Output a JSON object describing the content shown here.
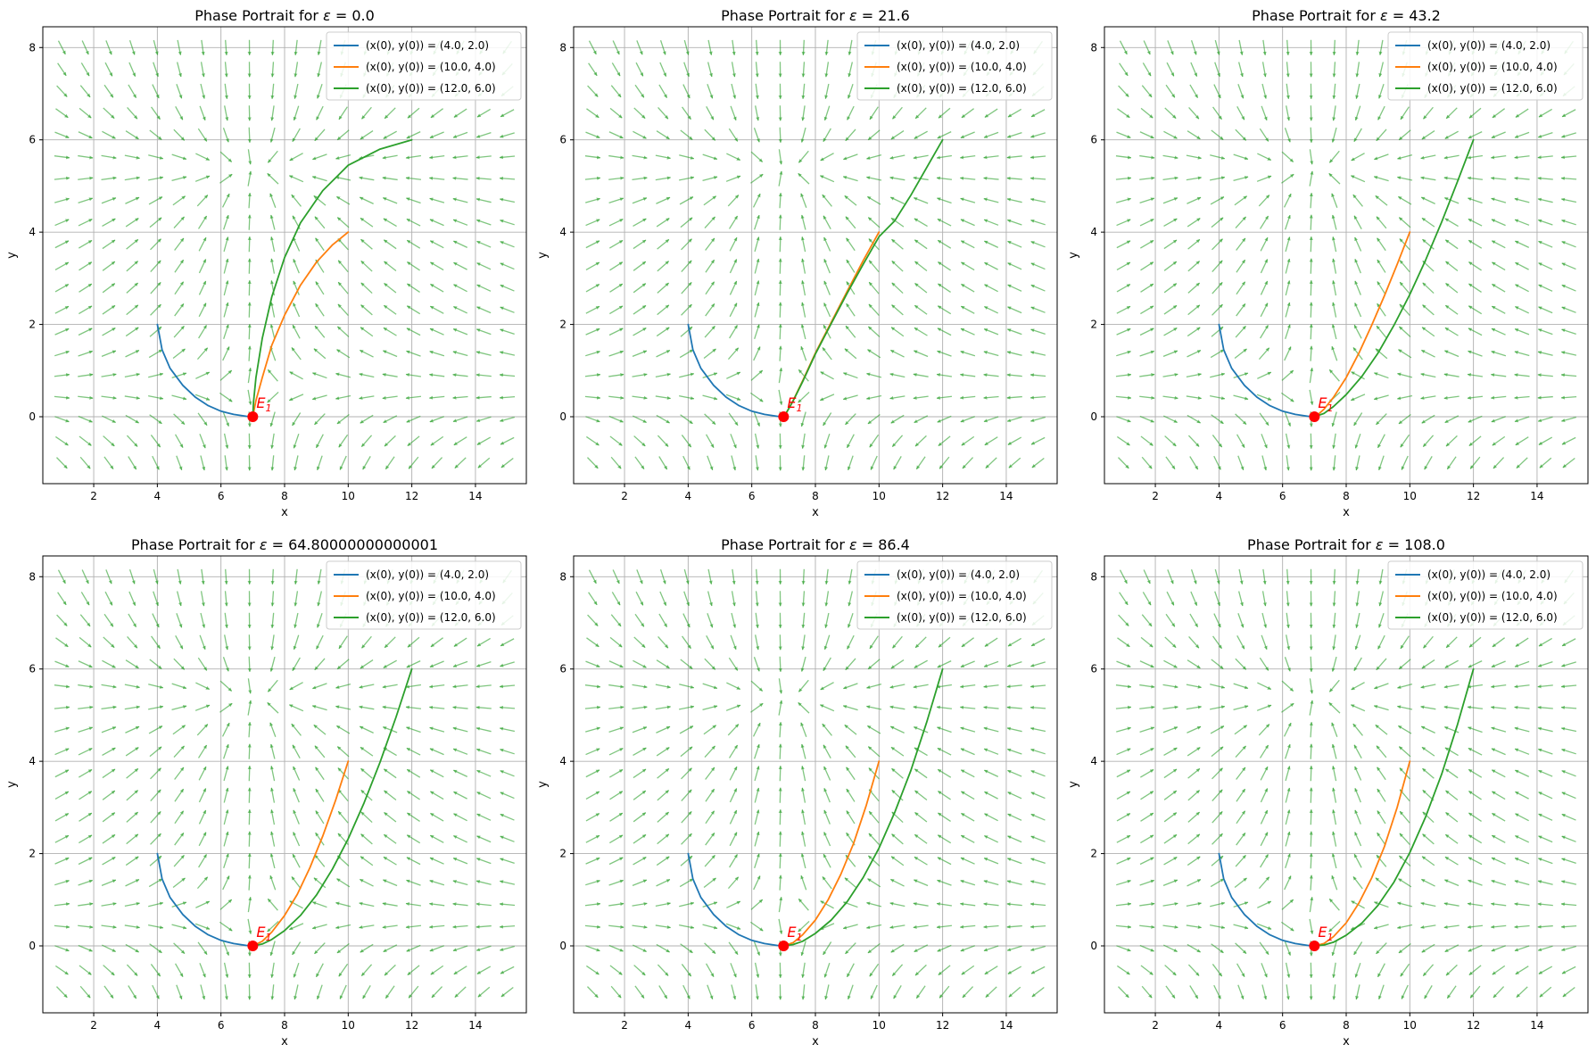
{
  "colors": {
    "series1": "#1f77b4",
    "series2": "#ff7f0e",
    "series3": "#2ca02c",
    "field": "#2ca02c",
    "equilibrium": "#ff0000",
    "grid": "#b0b0b0"
  },
  "field": {
    "x_start": 1,
    "x_end": 15,
    "x_count": 20,
    "y_start": -1,
    "y_end": 8,
    "y_count": 20
  },
  "chart_data": [
    {
      "type": "line",
      "title_prefix": "Phase Portrait for ",
      "title_symbol": "ε",
      "title_value": " = 0.0",
      "xlabel": "x",
      "ylabel": "y",
      "xlim": [
        0.4,
        15.6
      ],
      "ylim": [
        -1.45,
        8.45
      ],
      "xticks": [
        2,
        4,
        6,
        8,
        10,
        12,
        14
      ],
      "yticks": [
        0,
        2,
        4,
        6,
        8
      ],
      "grid": true,
      "legend_position": "top-right",
      "equilibrium": {
        "label": "E",
        "subscript": "1",
        "x": 7,
        "y": 0
      },
      "series": [
        {
          "name": "(x(0), y(0)) = (4.0, 2.0)",
          "color": "series1",
          "points": [
            [
              4.0,
              2.0
            ],
            [
              4.15,
              1.45
            ],
            [
              4.4,
              1.05
            ],
            [
              4.8,
              0.68
            ],
            [
              5.2,
              0.42
            ],
            [
              5.6,
              0.24
            ],
            [
              6.0,
              0.12
            ],
            [
              6.4,
              0.05
            ],
            [
              6.8,
              0.01
            ],
            [
              7.0,
              0.0
            ]
          ]
        },
        {
          "name": "(x(0), y(0)) = (10.0, 4.0)",
          "color": "series2",
          "points": [
            [
              10.0,
              4.0
            ],
            [
              9.5,
              3.72
            ],
            [
              9.0,
              3.35
            ],
            [
              8.5,
              2.85
            ],
            [
              8.0,
              2.2
            ],
            [
              7.6,
              1.55
            ],
            [
              7.3,
              0.85
            ],
            [
              7.1,
              0.35
            ],
            [
              7.02,
              0.08
            ],
            [
              7.0,
              0.0
            ]
          ]
        },
        {
          "name": "(x(0), y(0)) = (12.0, 6.0)",
          "color": "series3",
          "points": [
            [
              12.0,
              6.0
            ],
            [
              11.0,
              5.8
            ],
            [
              10.0,
              5.45
            ],
            [
              9.2,
              4.9
            ],
            [
              8.5,
              4.2
            ],
            [
              8.0,
              3.45
            ],
            [
              7.6,
              2.6
            ],
            [
              7.3,
              1.7
            ],
            [
              7.1,
              0.85
            ],
            [
              7.02,
              0.3
            ],
            [
              7.0,
              0.0
            ]
          ]
        }
      ]
    },
    {
      "type": "line",
      "title_prefix": "Phase Portrait for ",
      "title_symbol": "ε",
      "title_value": " = 21.6",
      "xlabel": "x",
      "ylabel": "y",
      "xlim": [
        0.4,
        15.6
      ],
      "ylim": [
        -1.45,
        8.45
      ],
      "xticks": [
        2,
        4,
        6,
        8,
        10,
        12,
        14
      ],
      "yticks": [
        0,
        2,
        4,
        6,
        8
      ],
      "grid": true,
      "legend_position": "top-right",
      "equilibrium": {
        "label": "E",
        "subscript": "1",
        "x": 7,
        "y": 0
      },
      "series": [
        {
          "name": "(x(0), y(0)) = (4.0, 2.0)",
          "color": "series1",
          "points": [
            [
              4.0,
              2.0
            ],
            [
              4.15,
              1.45
            ],
            [
              4.4,
              1.05
            ],
            [
              4.8,
              0.68
            ],
            [
              5.2,
              0.42
            ],
            [
              5.6,
              0.24
            ],
            [
              6.0,
              0.12
            ],
            [
              6.4,
              0.05
            ],
            [
              6.8,
              0.01
            ],
            [
              7.0,
              0.0
            ]
          ]
        },
        {
          "name": "(x(0), y(0)) = (10.0, 4.0)",
          "color": "series2",
          "points": [
            [
              10.0,
              4.0
            ],
            [
              9.5,
              3.38
            ],
            [
              9.0,
              2.72
            ],
            [
              8.5,
              2.05
            ],
            [
              8.0,
              1.38
            ],
            [
              7.6,
              0.78
            ],
            [
              7.3,
              0.35
            ],
            [
              7.1,
              0.1
            ],
            [
              7.0,
              0.0
            ]
          ]
        },
        {
          "name": "(x(0), y(0)) = (12.0, 6.0)",
          "color": "series3",
          "points": [
            [
              12.0,
              6.0
            ],
            [
              11.5,
              5.4
            ],
            [
              11.0,
              4.8
            ],
            [
              10.5,
              4.25
            ],
            [
              10.0,
              3.9
            ],
            [
              9.5,
              3.3
            ],
            [
              9.0,
              2.68
            ],
            [
              8.5,
              2.02
            ],
            [
              8.0,
              1.36
            ],
            [
              7.6,
              0.76
            ],
            [
              7.3,
              0.34
            ],
            [
              7.1,
              0.1
            ],
            [
              7.0,
              0.0
            ]
          ]
        }
      ]
    },
    {
      "type": "line",
      "title_prefix": "Phase Portrait for ",
      "title_symbol": "ε",
      "title_value": " = 43.2",
      "xlabel": "x",
      "ylabel": "y",
      "xlim": [
        0.4,
        15.6
      ],
      "ylim": [
        -1.45,
        8.45
      ],
      "xticks": [
        2,
        4,
        6,
        8,
        10,
        12,
        14
      ],
      "yticks": [
        0,
        2,
        4,
        6,
        8
      ],
      "grid": true,
      "legend_position": "top-right",
      "equilibrium": {
        "label": "E",
        "subscript": "1",
        "x": 7,
        "y": 0
      },
      "series": [
        {
          "name": "(x(0), y(0)) = (4.0, 2.0)",
          "color": "series1",
          "points": [
            [
              4.0,
              2.0
            ],
            [
              4.15,
              1.45
            ],
            [
              4.4,
              1.05
            ],
            [
              4.8,
              0.68
            ],
            [
              5.2,
              0.42
            ],
            [
              5.6,
              0.24
            ],
            [
              6.0,
              0.12
            ],
            [
              6.4,
              0.05
            ],
            [
              6.8,
              0.01
            ],
            [
              7.0,
              0.0
            ]
          ]
        },
        {
          "name": "(x(0), y(0)) = (10.0, 4.0)",
          "color": "series2",
          "points": [
            [
              10.0,
              4.0
            ],
            [
              9.6,
              3.3
            ],
            [
              9.2,
              2.62
            ],
            [
              8.8,
              1.98
            ],
            [
              8.4,
              1.38
            ],
            [
              8.0,
              0.85
            ],
            [
              7.6,
              0.42
            ],
            [
              7.3,
              0.16
            ],
            [
              7.1,
              0.04
            ],
            [
              7.0,
              0.0
            ]
          ]
        },
        {
          "name": "(x(0), y(0)) = (12.0, 6.0)",
          "color": "series3",
          "points": [
            [
              12.0,
              6.0
            ],
            [
              11.5,
              5.1
            ],
            [
              11.0,
              4.22
            ],
            [
              10.5,
              3.4
            ],
            [
              10.0,
              2.65
            ],
            [
              9.5,
              1.98
            ],
            [
              9.0,
              1.38
            ],
            [
              8.5,
              0.88
            ],
            [
              8.0,
              0.48
            ],
            [
              7.6,
              0.22
            ],
            [
              7.3,
              0.07
            ],
            [
              7.0,
              0.0
            ]
          ]
        }
      ]
    },
    {
      "type": "line",
      "title_prefix": "Phase Portrait for ",
      "title_symbol": "ε",
      "title_value": " = 64.80000000000001",
      "xlabel": "x",
      "ylabel": "y",
      "xlim": [
        0.4,
        15.6
      ],
      "ylim": [
        -1.45,
        8.45
      ],
      "xticks": [
        2,
        4,
        6,
        8,
        10,
        12,
        14
      ],
      "yticks": [
        0,
        2,
        4,
        6,
        8
      ],
      "grid": true,
      "legend_position": "top-right",
      "equilibrium": {
        "label": "E",
        "subscript": "1",
        "x": 7,
        "y": 0
      },
      "series": [
        {
          "name": "(x(0), y(0)) = (4.0, 2.0)",
          "color": "series1",
          "points": [
            [
              4.0,
              2.0
            ],
            [
              4.15,
              1.45
            ],
            [
              4.4,
              1.05
            ],
            [
              4.8,
              0.68
            ],
            [
              5.2,
              0.42
            ],
            [
              5.6,
              0.24
            ],
            [
              6.0,
              0.12
            ],
            [
              6.4,
              0.05
            ],
            [
              6.8,
              0.01
            ],
            [
              7.0,
              0.0
            ]
          ]
        },
        {
          "name": "(x(0), y(0)) = (10.0, 4.0)",
          "color": "series2",
          "points": [
            [
              10.0,
              4.0
            ],
            [
              9.6,
              3.15
            ],
            [
              9.2,
              2.38
            ],
            [
              8.8,
              1.7
            ],
            [
              8.4,
              1.12
            ],
            [
              8.0,
              0.66
            ],
            [
              7.6,
              0.3
            ],
            [
              7.3,
              0.1
            ],
            [
              7.0,
              0.0
            ]
          ]
        },
        {
          "name": "(x(0), y(0)) = (12.0, 6.0)",
          "color": "series3",
          "points": [
            [
              12.0,
              6.0
            ],
            [
              11.5,
              4.95
            ],
            [
              11.0,
              3.98
            ],
            [
              10.5,
              3.1
            ],
            [
              10.0,
              2.32
            ],
            [
              9.5,
              1.66
            ],
            [
              9.0,
              1.1
            ],
            [
              8.5,
              0.66
            ],
            [
              8.0,
              0.33
            ],
            [
              7.6,
              0.14
            ],
            [
              7.3,
              0.04
            ],
            [
              7.0,
              0.0
            ]
          ]
        }
      ]
    },
    {
      "type": "line",
      "title_prefix": "Phase Portrait for ",
      "title_symbol": "ε",
      "title_value": " = 86.4",
      "xlabel": "x",
      "ylabel": "y",
      "xlim": [
        0.4,
        15.6
      ],
      "ylim": [
        -1.45,
        8.45
      ],
      "xticks": [
        2,
        4,
        6,
        8,
        10,
        12,
        14
      ],
      "yticks": [
        0,
        2,
        4,
        6,
        8
      ],
      "grid": true,
      "legend_position": "top-right",
      "equilibrium": {
        "label": "E",
        "subscript": "1",
        "x": 7,
        "y": 0
      },
      "series": [
        {
          "name": "(x(0), y(0)) = (4.0, 2.0)",
          "color": "series1",
          "points": [
            [
              4.0,
              2.0
            ],
            [
              4.15,
              1.45
            ],
            [
              4.4,
              1.05
            ],
            [
              4.8,
              0.68
            ],
            [
              5.2,
              0.42
            ],
            [
              5.6,
              0.24
            ],
            [
              6.0,
              0.12
            ],
            [
              6.4,
              0.05
            ],
            [
              6.8,
              0.01
            ],
            [
              7.0,
              0.0
            ]
          ]
        },
        {
          "name": "(x(0), y(0)) = (10.0, 4.0)",
          "color": "series2",
          "points": [
            [
              10.0,
              4.0
            ],
            [
              9.6,
              3.05
            ],
            [
              9.2,
              2.22
            ],
            [
              8.8,
              1.55
            ],
            [
              8.4,
              1.0
            ],
            [
              8.0,
              0.56
            ],
            [
              7.6,
              0.24
            ],
            [
              7.3,
              0.07
            ],
            [
              7.0,
              0.0
            ]
          ]
        },
        {
          "name": "(x(0), y(0)) = (12.0, 6.0)",
          "color": "series3",
          "points": [
            [
              12.0,
              6.0
            ],
            [
              11.5,
              4.85
            ],
            [
              11.0,
              3.8
            ],
            [
              10.5,
              2.9
            ],
            [
              10.0,
              2.12
            ],
            [
              9.5,
              1.48
            ],
            [
              9.0,
              0.96
            ],
            [
              8.5,
              0.56
            ],
            [
              8.0,
              0.27
            ],
            [
              7.6,
              0.1
            ],
            [
              7.3,
              0.03
            ],
            [
              7.0,
              0.0
            ]
          ]
        }
      ]
    },
    {
      "type": "line",
      "title_prefix": "Phase Portrait for ",
      "title_symbol": "ε",
      "title_value": " = 108.0",
      "xlabel": "x",
      "ylabel": "y",
      "xlim": [
        0.4,
        15.6
      ],
      "ylim": [
        -1.45,
        8.45
      ],
      "xticks": [
        2,
        4,
        6,
        8,
        10,
        12,
        14
      ],
      "yticks": [
        0,
        2,
        4,
        6,
        8
      ],
      "grid": true,
      "legend_position": "top-right",
      "equilibrium": {
        "label": "E",
        "subscript": "1",
        "x": 7,
        "y": 0
      },
      "series": [
        {
          "name": "(x(0), y(0)) = (4.0, 2.0)",
          "color": "series1",
          "points": [
            [
              4.0,
              2.0
            ],
            [
              4.15,
              1.45
            ],
            [
              4.4,
              1.05
            ],
            [
              4.8,
              0.68
            ],
            [
              5.2,
              0.42
            ],
            [
              5.6,
              0.24
            ],
            [
              6.0,
              0.12
            ],
            [
              6.4,
              0.05
            ],
            [
              6.8,
              0.01
            ],
            [
              7.0,
              0.0
            ]
          ]
        },
        {
          "name": "(x(0), y(0)) = (10.0, 4.0)",
          "color": "series2",
          "points": [
            [
              10.0,
              4.0
            ],
            [
              9.6,
              3.0
            ],
            [
              9.2,
              2.15
            ],
            [
              8.8,
              1.47
            ],
            [
              8.4,
              0.93
            ],
            [
              8.0,
              0.5
            ],
            [
              7.6,
              0.2
            ],
            [
              7.3,
              0.05
            ],
            [
              7.0,
              0.0
            ]
          ]
        },
        {
          "name": "(x(0), y(0)) = (12.0, 6.0)",
          "color": "series3",
          "points": [
            [
              12.0,
              6.0
            ],
            [
              11.5,
              4.8
            ],
            [
              11.0,
              3.72
            ],
            [
              10.5,
              2.8
            ],
            [
              10.0,
              2.02
            ],
            [
              9.5,
              1.38
            ],
            [
              9.0,
              0.88
            ],
            [
              8.5,
              0.5
            ],
            [
              8.0,
              0.23
            ],
            [
              7.6,
              0.08
            ],
            [
              7.3,
              0.02
            ],
            [
              7.0,
              0.0
            ]
          ]
        }
      ]
    }
  ]
}
